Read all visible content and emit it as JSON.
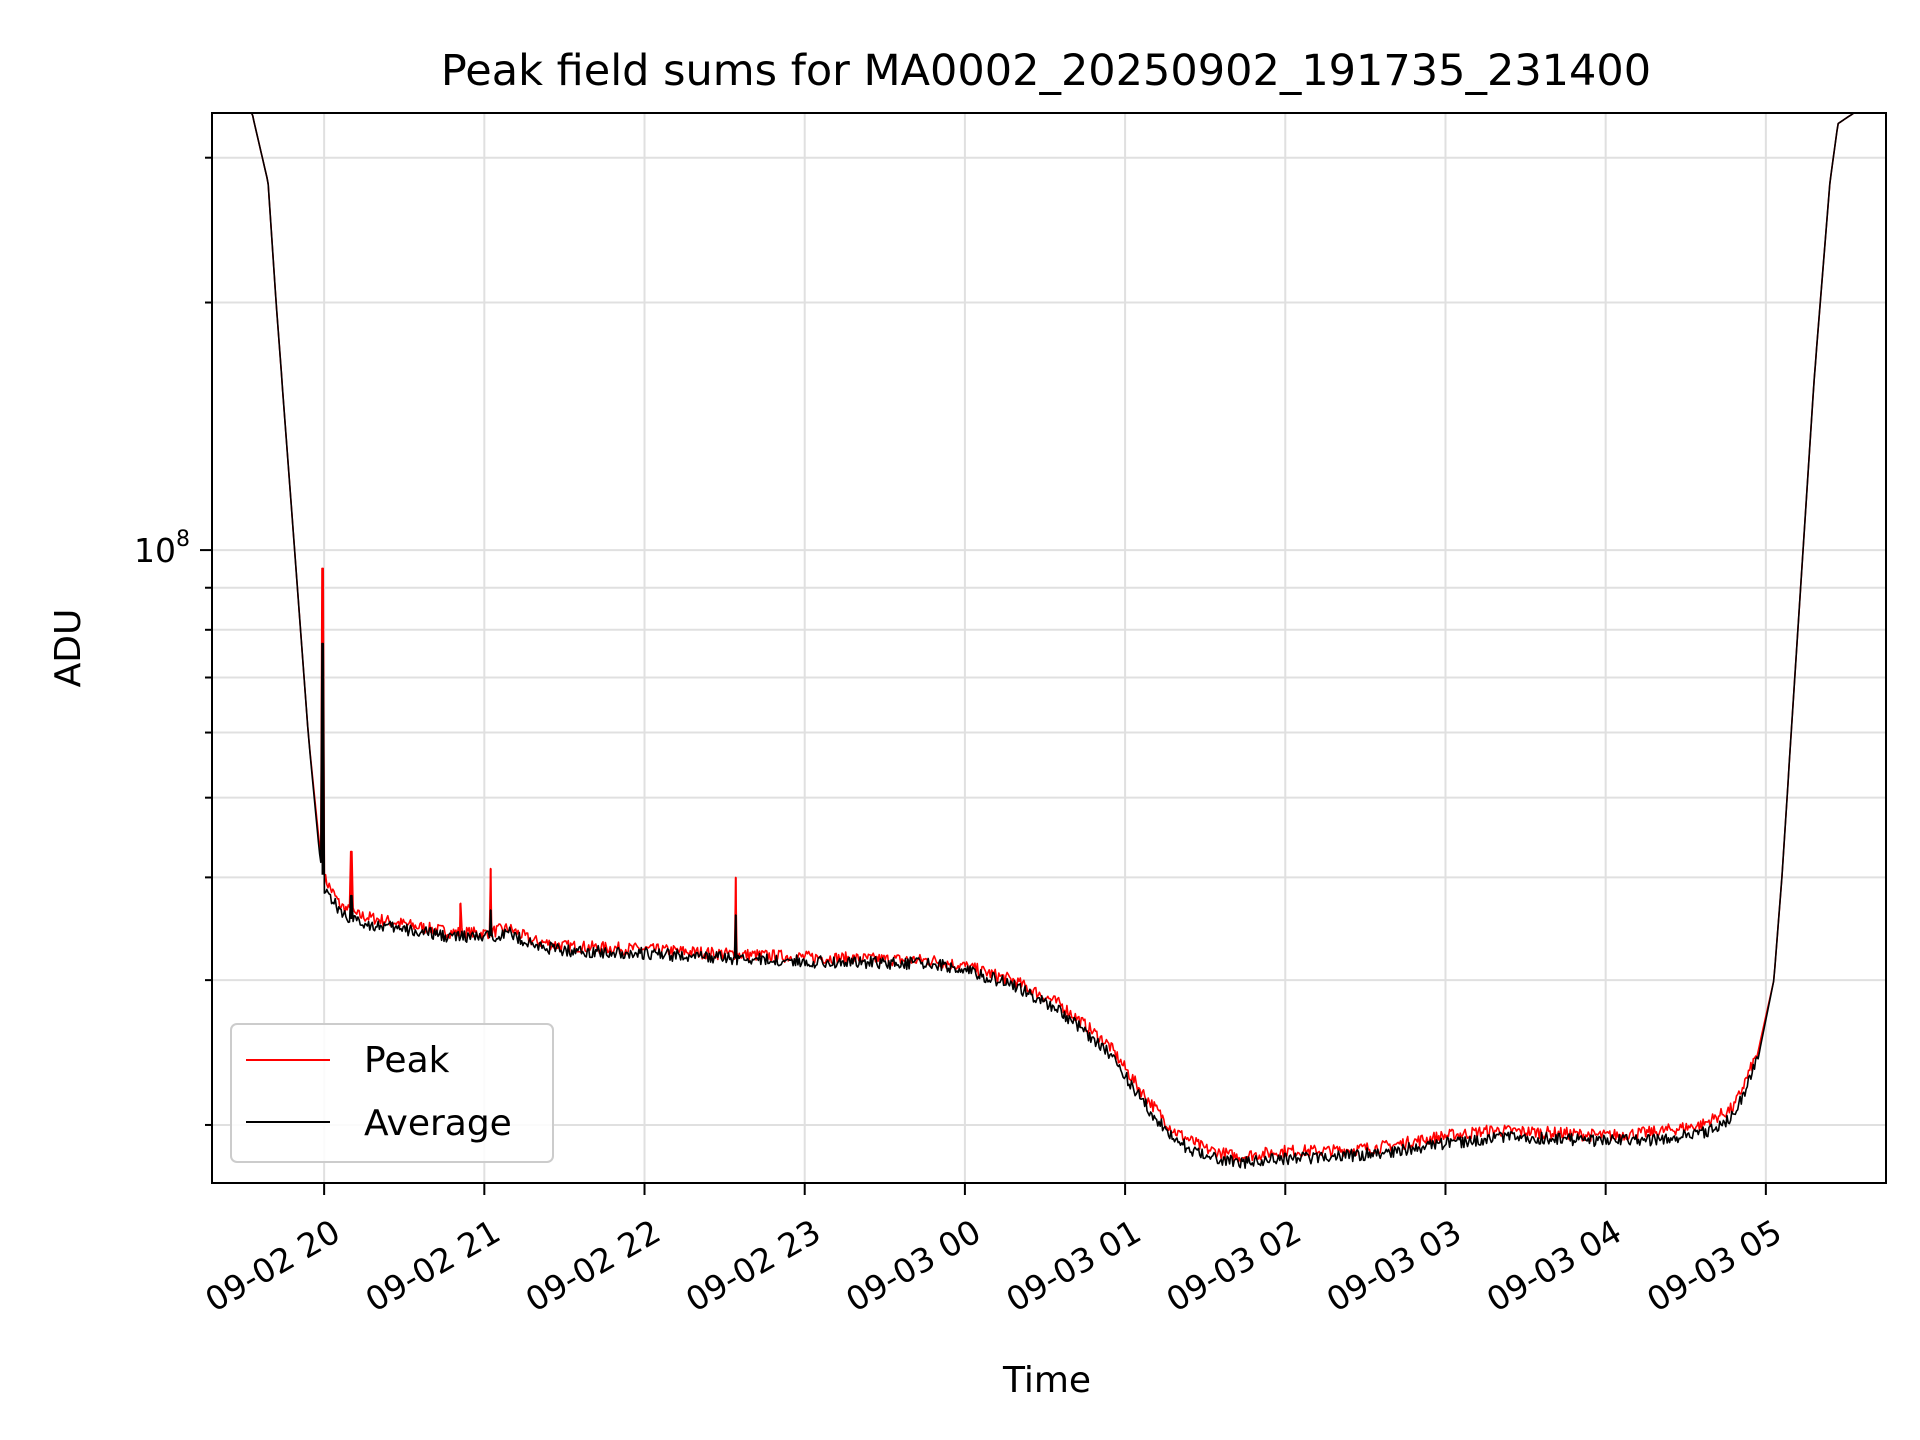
{
  "chart_data": {
    "type": "line",
    "title": "Peak field sums for MA0002_20250902_191735_231400",
    "xlabel": "Time",
    "ylabel": "ADU",
    "yscale": "log",
    "grid": true,
    "legend_position": "lower-left",
    "xlim_hours": [
      -0.7,
      9.75
    ],
    "ylim": [
      17000000,
      340000000
    ],
    "x_ticks": [
      {
        "label": "09-02 20",
        "value": 0
      },
      {
        "label": "09-02 21",
        "value": 1
      },
      {
        "label": "09-02 22",
        "value": 2
      },
      {
        "label": "09-02 23",
        "value": 3
      },
      {
        "label": "09-03 00",
        "value": 4
      },
      {
        "label": "09-03 01",
        "value": 5
      },
      {
        "label": "09-03 02",
        "value": 6
      },
      {
        "label": "09-03 03",
        "value": 7
      },
      {
        "label": "09-03 04",
        "value": 8
      },
      {
        "label": "09-03 05",
        "value": 9
      }
    ],
    "y_major_ticks": [
      {
        "label": "10",
        "exponent": "8",
        "value": 100000000
      }
    ],
    "y_minor_ticks": [
      20000000,
      30000000,
      40000000,
      50000000,
      60000000,
      70000000,
      80000000,
      90000000,
      200000000,
      300000000
    ],
    "x_time_hours": [
      -0.55,
      -0.45,
      -0.35,
      -0.3,
      -0.2,
      -0.1,
      -0.03,
      0.0,
      0.1,
      0.2,
      0.4,
      0.6,
      0.8,
      1.0,
      1.15,
      1.3,
      1.5,
      2.0,
      2.5,
      3.0,
      3.5,
      3.8,
      4.0,
      4.3,
      4.6,
      4.9,
      5.1,
      5.3,
      5.5,
      5.7,
      6.0,
      6.3,
      6.6,
      7.0,
      7.3,
      7.6,
      8.0,
      8.3,
      8.6,
      8.8,
      8.95,
      9.05,
      9.1,
      9.2,
      9.3,
      9.4,
      9.45,
      9.55,
      9.75
    ],
    "series": [
      {
        "name": "Peak",
        "color": "#ff0000",
        "values": [
          340000000,
          340000000,
          280000000,
          200000000,
          110000000,
          60000000,
          44000000,
          40000000,
          37000000,
          36000000,
          35400000,
          34800000,
          34300000,
          34200000,
          34700000,
          33500000,
          33000000,
          32700000,
          32300000,
          32000000,
          31800000,
          31700000,
          31200000,
          30000000,
          28000000,
          25000000,
          22000000,
          19700000,
          18700000,
          18300000,
          18600000,
          18600000,
          18800000,
          19400000,
          19700000,
          19600000,
          19400000,
          19600000,
          20000000,
          21000000,
          24500000,
          30000000,
          40000000,
          80000000,
          160000000,
          280000000,
          330000000,
          340000000,
          340000000
        ],
        "spikes": [
          {
            "x": -0.01,
            "value": 95000000
          },
          {
            "x": 0.17,
            "value": 43000000
          },
          {
            "x": 0.85,
            "value": 37200000
          },
          {
            "x": 1.04,
            "value": 41000000
          },
          {
            "x": 2.57,
            "value": 40000000
          }
        ]
      },
      {
        "name": "Average",
        "color": "#000000",
        "values": [
          340000000,
          340000000,
          280000000,
          200000000,
          110000000,
          60000000,
          43000000,
          39000000,
          36300000,
          35300000,
          34800000,
          34300000,
          33900000,
          33800000,
          34300000,
          33100000,
          32600000,
          32300000,
          31900000,
          31600000,
          31500000,
          31400000,
          30900000,
          29600000,
          27500000,
          24500000,
          21500000,
          19200000,
          18300000,
          18000000,
          18200000,
          18300000,
          18500000,
          19000000,
          19300000,
          19300000,
          19100000,
          19200000,
          19500000,
          20500000,
          24000000,
          30000000,
          40000000,
          80000000,
          160000000,
          280000000,
          330000000,
          340000000,
          340000000
        ],
        "spikes": [
          {
            "x": -0.01,
            "value": 77000000
          },
          {
            "x": 0.17,
            "value": 38000000
          },
          {
            "x": 1.04,
            "value": 36500000
          },
          {
            "x": 2.57,
            "value": 36000000
          }
        ]
      }
    ],
    "legend": [
      "Peak",
      "Average"
    ]
  }
}
